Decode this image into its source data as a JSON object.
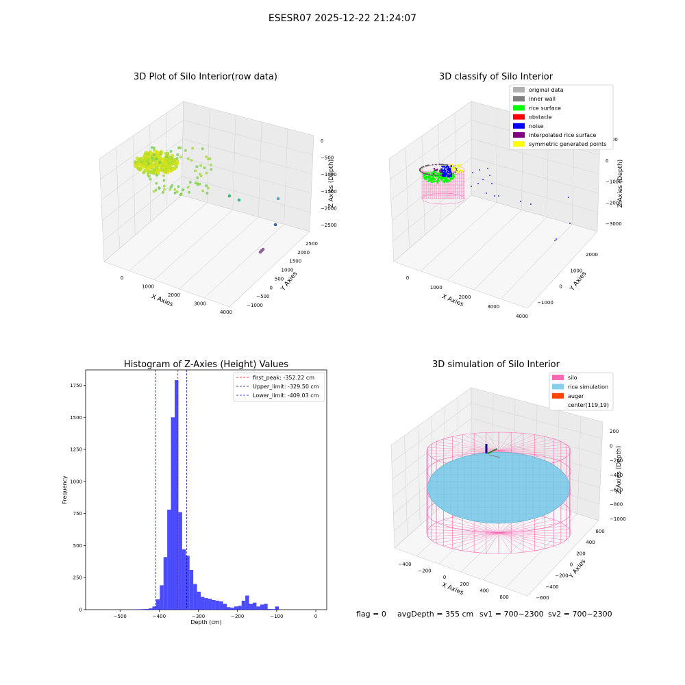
{
  "suptitle": "ESESR07 2025-12-22 21:24:07",
  "footer": {
    "flag": "flag = 0",
    "avg_depth": "avgDepth = 355 cm",
    "sv1": "sv1 = 700~2300",
    "sv2": "sv2 = 700~2300"
  },
  "chart_data": [
    {
      "type": "scatter",
      "projection": "3d",
      "title": "3D Plot of Silo Interior(row data)",
      "xlabel": "X Axies",
      "ylabel": "Y Axies",
      "zlabel": "Z Axies (Depth)",
      "xticks": [
        "0",
        "1000",
        "2000",
        "3000",
        "4000"
      ],
      "yticks": [
        "−1000",
        "−500",
        "0",
        "500",
        "1000",
        "1500",
        "2000",
        "2500"
      ],
      "zticks": [
        "0",
        "−500",
        "−1000",
        "−1500",
        "−2000",
        "−2500"
      ],
      "colormap": "viridis",
      "clusters": [
        {
          "x": 150,
          "y": 2000,
          "z": -350,
          "color": "#c8e11e"
        },
        {
          "x": 900,
          "y": 1500,
          "z": -700,
          "color": "#7ed04b"
        },
        {
          "x": 2500,
          "y": 0,
          "z": -1500,
          "color": "#2a8f8a"
        },
        {
          "x": 3300,
          "y": -600,
          "z": -2300,
          "color": "#8f5f97"
        }
      ]
    },
    {
      "type": "scatter",
      "projection": "3d",
      "title": "3D classify of Silo Interior",
      "xlabel": "X Axies",
      "ylabel": "Y Axies",
      "zlabel": "Z Axies (Depth)",
      "xticks": [
        "0",
        "1000",
        "2000",
        "3000",
        "4000"
      ],
      "yticks": [
        "−1000",
        "0",
        "1000",
        "2000"
      ],
      "zticks": [
        "1000",
        "0",
        "−1000",
        "−2000",
        "−3000"
      ],
      "legend": {
        "position": "upper right",
        "entries": [
          {
            "label": "original data",
            "color": "#b0b0b0"
          },
          {
            "label": "inner wall",
            "color": "#808080"
          },
          {
            "label": "rice surface",
            "color": "#00ff00"
          },
          {
            "label": "obstacle",
            "color": "#ff0000"
          },
          {
            "label": "noise",
            "color": "#0000ff"
          },
          {
            "label": "interpolated rice surface",
            "color": "#800080"
          },
          {
            "label": "symmetric generated points",
            "color": "#ffff00"
          }
        ]
      }
    },
    {
      "type": "bar",
      "title": "Histogram of Z-Axies (Height) Values",
      "xlabel": "Depth (cm)",
      "ylabel": "Frequency",
      "xlim": [
        -588,
        28
      ],
      "ylim": [
        0,
        1870
      ],
      "xticks": [
        -500,
        -400,
        -300,
        -200,
        -100,
        0
      ],
      "xtick_labels": [
        "−500",
        "−400",
        "−300",
        "−200",
        "−100",
        "0"
      ],
      "yticks": [
        0,
        250,
        500,
        750,
        1000,
        1250,
        1500,
        1750
      ],
      "bar_color": "#0000ff",
      "bin_width": 9.5,
      "bin_start": -465,
      "counts": [
        2,
        3,
        4,
        5,
        10,
        25,
        80,
        190,
        410,
        780,
        1500,
        1790,
        760,
        470,
        420,
        310,
        200,
        140,
        100,
        90,
        85,
        75,
        70,
        65,
        45,
        20,
        15,
        25,
        30,
        70,
        110,
        45,
        55,
        25,
        40,
        45,
        5,
        4,
        25
      ],
      "lines": [
        {
          "label": "first_peak: -352.22 cm",
          "x": -352.22,
          "color": "#ff0000"
        },
        {
          "label": "Upper_limit: -329.50 cm",
          "x": -329.5,
          "color": "#00008b"
        },
        {
          "label": "Lower_limit: -409.03 cm",
          "x": -409.03,
          "color": "#0000ff"
        }
      ],
      "legend": {
        "position": "upper right"
      }
    },
    {
      "type": "scatter",
      "projection": "3d",
      "title": "3D simulation of Silo Interior",
      "xlabel": "X Axies",
      "ylabel": "Y Axies",
      "zlabel": "Z Axies (Depth)",
      "xticks": [
        "−400",
        "−200",
        "0",
        "200",
        "400",
        "600"
      ],
      "yticks": [
        "−600",
        "−400",
        "−200",
        "0",
        "200",
        "400",
        "600"
      ],
      "zticks": [
        "200",
        "0",
        "−200",
        "−400",
        "−600",
        "−800",
        "−1000"
      ],
      "legend": {
        "position": "upper right",
        "entries": [
          {
            "label": "silo",
            "color": "#ff69b4"
          },
          {
            "label": "rice simulation",
            "color": "#87ceeb"
          },
          {
            "label": "auger",
            "color": "#ff4500"
          },
          {
            "label": "center(119,19)",
            "color": ""
          }
        ]
      }
    }
  ]
}
